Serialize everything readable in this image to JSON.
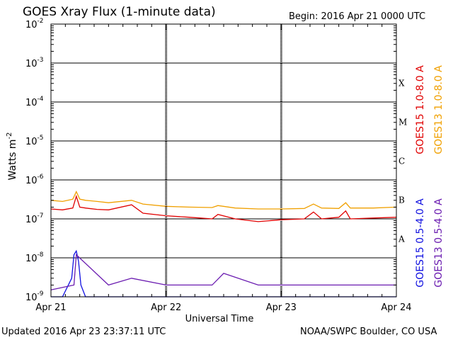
{
  "header": {
    "title": "GOES Xray Flux (1-minute data)",
    "begin": "Begin:  2016 Apr 21 0000 UTC"
  },
  "footer": {
    "updated": "Updated 2016 Apr 23 23:37:11 UTC",
    "credit": "NOAA/SWPC Boulder, CO USA"
  },
  "colors": {
    "goes15_long": "#e00000",
    "goes13_long": "#f0a000",
    "goes15_short": "#1010e0",
    "goes13_short": "#6a1bb0"
  },
  "chart_data": {
    "type": "line",
    "title": "GOES Xray Flux (1-minute data)",
    "xlabel": "Universal Time",
    "ylabel": "Watts m-2",
    "y_scale": "log",
    "ylim": [
      1e-09,
      0.01
    ],
    "xlim": [
      0,
      3
    ],
    "x_tick_labels": [
      "Apr 21",
      "Apr 22",
      "Apr 23",
      "Apr 24"
    ],
    "y_tick_labels": [
      {
        "base": "10",
        "exp": "-9"
      },
      {
        "base": "10",
        "exp": "-8"
      },
      {
        "base": "10",
        "exp": "-7"
      },
      {
        "base": "10",
        "exp": "-6"
      },
      {
        "base": "10",
        "exp": "-5"
      },
      {
        "base": "10",
        "exp": "-4"
      },
      {
        "base": "10",
        "exp": "-3"
      },
      {
        "base": "10",
        "exp": "-2"
      }
    ],
    "flare_classes": [
      "A",
      "B",
      "C",
      "M",
      "X"
    ],
    "grid": true,
    "legend_position": "right, vertical",
    "series": [
      {
        "name": "GOES15 1.0-8.0 A",
        "band": "long",
        "color": "#e00000",
        "x": [
          0,
          0.1,
          0.19,
          0.22,
          0.25,
          0.3,
          0.4,
          0.5,
          0.7,
          0.8,
          1.0,
          1.2,
          1.4,
          1.45,
          1.6,
          1.8,
          2.0,
          2.2,
          2.28,
          2.35,
          2.5,
          2.56,
          2.6,
          2.8,
          3.0
        ],
        "y": [
          1.8e-07,
          1.7e-07,
          1.9e-07,
          3.8e-07,
          2e-07,
          1.9e-07,
          1.75e-07,
          1.7e-07,
          2.3e-07,
          1.4e-07,
          1.2e-07,
          1.1e-07,
          1e-07,
          1.3e-07,
          1e-07,
          8.5e-08,
          9.5e-08,
          1e-07,
          1.5e-07,
          1e-07,
          1.1e-07,
          1.6e-07,
          1e-07,
          1.05e-07,
          1.1e-07
        ]
      },
      {
        "name": "GOES13 1.0-8.0 A",
        "band": "long",
        "color": "#f0a000",
        "x": [
          0,
          0.1,
          0.19,
          0.22,
          0.25,
          0.3,
          0.4,
          0.5,
          0.7,
          0.8,
          1.0,
          1.2,
          1.4,
          1.45,
          1.6,
          1.8,
          2.0,
          2.2,
          2.28,
          2.35,
          2.5,
          2.56,
          2.6,
          2.8,
          3.0
        ],
        "y": [
          3e-07,
          2.8e-07,
          3.2e-07,
          5e-07,
          3.2e-07,
          3e-07,
          2.8e-07,
          2.6e-07,
          3e-07,
          2.4e-07,
          2.1e-07,
          2e-07,
          1.95e-07,
          2.2e-07,
          1.9e-07,
          1.8e-07,
          1.8e-07,
          1.85e-07,
          2.4e-07,
          1.9e-07,
          1.85e-07,
          2.6e-07,
          1.9e-07,
          1.9e-07,
          2e-07
        ]
      },
      {
        "name": "GOES15 0.5-4.0 A",
        "band": "short",
        "color": "#1010e0",
        "x": [
          0,
          0.1,
          0.18,
          0.2,
          0.22,
          0.24,
          0.26,
          0.3,
          1.0,
          2.0,
          3.0
        ],
        "y": [
          1e-09,
          1e-09,
          3e-09,
          1.2e-08,
          1.5e-08,
          8e-09,
          2e-09,
          1e-09,
          1e-09,
          1e-09,
          1e-09
        ]
      },
      {
        "name": "GOES13 0.5-4.0 A",
        "band": "short",
        "color": "#6a1bb0",
        "x": [
          0,
          0.2,
          0.22,
          0.5,
          0.7,
          1.0,
          1.4,
          1.5,
          1.8,
          2.0,
          2.5,
          2.8,
          3.0
        ],
        "y": [
          1.5e-09,
          2e-09,
          1.2e-08,
          2e-09,
          3e-09,
          2e-09,
          2e-09,
          4e-09,
          2e-09,
          2e-09,
          2e-09,
          2e-09,
          2e-09
        ]
      }
    ]
  }
}
